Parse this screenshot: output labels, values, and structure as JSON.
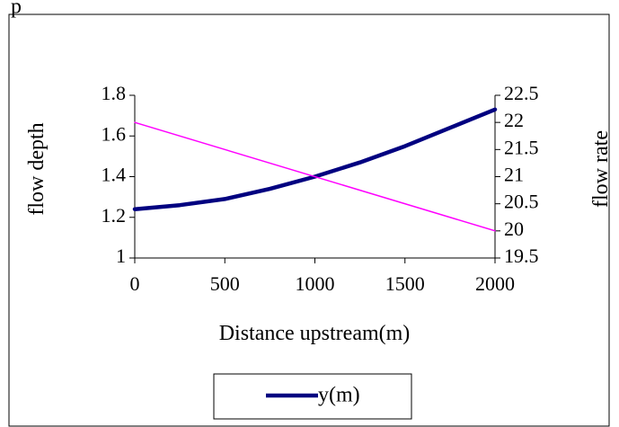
{
  "page": {
    "top_text": "p"
  },
  "chart_data": {
    "type": "line",
    "title": "",
    "xlabel": "Distance upstream(m)",
    "ylabel": "flow depth",
    "y2label": "flow rate",
    "xlim": [
      0,
      2000
    ],
    "ylim": [
      1,
      1.8
    ],
    "y2lim": [
      19.5,
      22.5
    ],
    "x_ticks": [
      0,
      500,
      1000,
      1500,
      2000
    ],
    "y_ticks": [
      1,
      1.2,
      1.4,
      1.6,
      1.8
    ],
    "y2_ticks": [
      19.5,
      20,
      20.5,
      21,
      21.5,
      22,
      22.5
    ],
    "grid": false,
    "legend_position": "bottom",
    "series": [
      {
        "name": "y(m)",
        "axis": "left",
        "color": "#000080",
        "x": [
          0,
          250,
          500,
          750,
          1000,
          1250,
          1500,
          1750,
          2000
        ],
        "values": [
          1.24,
          1.26,
          1.29,
          1.34,
          1.4,
          1.47,
          1.55,
          1.64,
          1.73
        ]
      },
      {
        "axis": "right",
        "color": "#ff00ff",
        "x": [
          0,
          2000
        ],
        "values": [
          22.0,
          20.0
        ]
      }
    ]
  }
}
